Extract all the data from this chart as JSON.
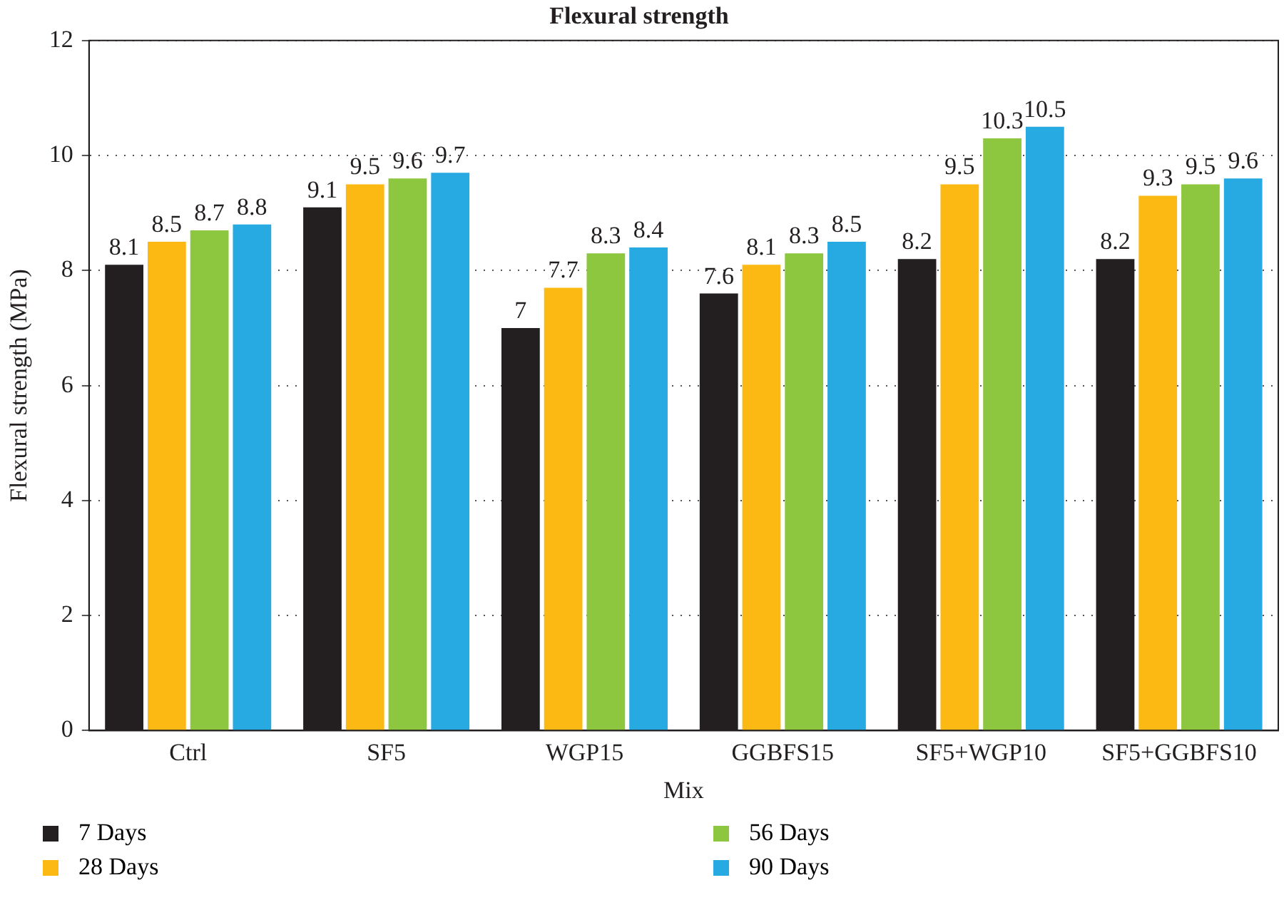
{
  "chart_data": {
    "type": "bar",
    "title": "Flexural strength",
    "xlabel": "Mix",
    "ylabel": "Flexural strength (MPa)",
    "categories": [
      "Ctrl",
      "SF5",
      "WGP15",
      "GGBFS15",
      "SF5+WGP10",
      "SF5+GGBFS10"
    ],
    "series": [
      {
        "name": "7 Days",
        "color": "#231f20",
        "values": [
          8.1,
          9.1,
          7,
          7.6,
          8.2,
          8.2
        ]
      },
      {
        "name": "28 Days",
        "color": "#fdb913",
        "values": [
          8.5,
          9.5,
          7.7,
          8.1,
          9.5,
          9.3
        ]
      },
      {
        "name": "56 Days",
        "color": "#8dc63f",
        "values": [
          8.7,
          9.6,
          8.3,
          8.3,
          10.3,
          9.5
        ]
      },
      {
        "name": "90 Days",
        "color": "#27aae1",
        "values": [
          8.8,
          9.7,
          8.4,
          8.5,
          10.5,
          9.6
        ]
      }
    ],
    "ylim": [
      0,
      12
    ],
    "yticks": [
      0,
      2,
      4,
      6,
      8,
      10,
      12
    ],
    "grid": "y",
    "legend": "bottom",
    "data_labels": true
  }
}
